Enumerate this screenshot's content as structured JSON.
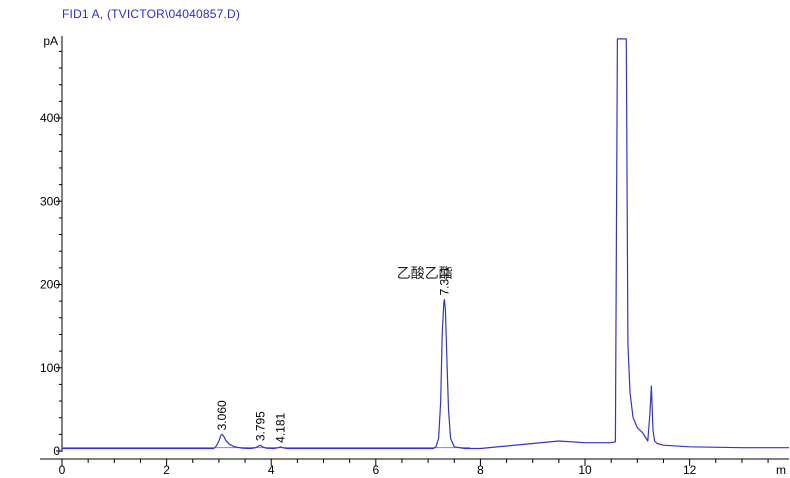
{
  "chart_data": {
    "type": "line",
    "title": "FID1 A,  (TVICTOR\\04040857.D)",
    "ylabel": "pA",
    "xlabel": "",
    "x_tick_labels": [
      "0",
      "2",
      "4",
      "6",
      "8",
      "10",
      "12"
    ],
    "y_tick_labels": [
      "0",
      "100",
      "200",
      "300",
      "400"
    ],
    "xlim": [
      0,
      13.9
    ],
    "ylim": [
      -5,
      495
    ],
    "axis_end_label": "m",
    "series": [
      {
        "color": "#3333cc",
        "x": [
          0,
          2.9,
          2.95,
          3.0,
          3.04,
          3.06,
          3.09,
          3.13,
          3.2,
          3.3,
          3.45,
          3.6,
          3.7,
          3.76,
          3.795,
          3.83,
          3.9,
          4.05,
          4.14,
          4.181,
          4.22,
          4.3,
          5.0,
          6.0,
          7.1,
          7.15,
          7.2,
          7.24,
          7.27,
          7.3,
          7.311,
          7.33,
          7.36,
          7.39,
          7.43,
          7.5,
          7.7,
          8.0,
          9.0,
          9.5,
          10.0,
          10.5,
          10.58,
          10.62,
          10.64,
          10.7,
          10.75,
          10.79,
          10.82,
          10.86,
          10.92,
          11.0,
          11.1,
          11.2,
          11.24,
          11.27,
          11.3,
          11.33,
          11.38,
          11.5,
          12.0,
          13.0,
          13.9
        ],
        "y": [
          3,
          3,
          6,
          12,
          19,
          20,
          18,
          13,
          8,
          5,
          3.5,
          3,
          4,
          6,
          7,
          5,
          3.5,
          3,
          4,
          5,
          4,
          3,
          3,
          3,
          3,
          5,
          15,
          60,
          140,
          178,
          182,
          170,
          110,
          50,
          15,
          5,
          3,
          3,
          9,
          12,
          10,
          10,
          11,
          495,
          495,
          495,
          495,
          495,
          130,
          70,
          40,
          28,
          22,
          12,
          45,
          78,
          25,
          12,
          9,
          7,
          5,
          4,
          4
        ]
      }
    ],
    "peak_labels": [
      {
        "label": "3.060",
        "x": 3.06,
        "y": 20
      },
      {
        "label": "3.795",
        "x": 3.795,
        "y": 7
      },
      {
        "label": "4.181",
        "x": 4.181,
        "y": 5
      },
      {
        "label": "7.311",
        "x": 7.311,
        "y": 182
      }
    ],
    "baseline": {
      "color": "#dd55dd",
      "segments": [
        [
          0.0,
          4
        ],
        [
          7.8,
          4
        ]
      ]
    },
    "annotations": [
      {
        "text": "乙酸乙酯",
        "x": 6.4,
        "y": 208
      }
    ]
  }
}
